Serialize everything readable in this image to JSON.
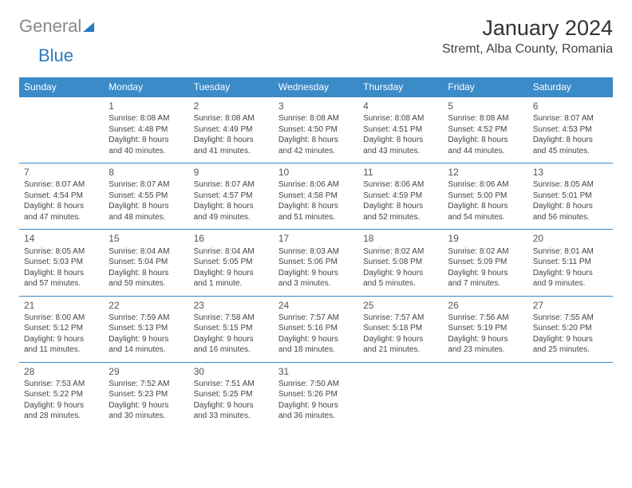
{
  "logo": {
    "general": "General",
    "blue": "Blue"
  },
  "header": {
    "month_title": "January 2024",
    "location": "Stremt, Alba County, Romania"
  },
  "day_headers": [
    "Sunday",
    "Monday",
    "Tuesday",
    "Wednesday",
    "Thursday",
    "Friday",
    "Saturday"
  ],
  "weeks": [
    [
      null,
      {
        "n": "1",
        "sr": "Sunrise: 8:08 AM",
        "ss": "Sunset: 4:48 PM",
        "d1": "Daylight: 8 hours",
        "d2": "and 40 minutes."
      },
      {
        "n": "2",
        "sr": "Sunrise: 8:08 AM",
        "ss": "Sunset: 4:49 PM",
        "d1": "Daylight: 8 hours",
        "d2": "and 41 minutes."
      },
      {
        "n": "3",
        "sr": "Sunrise: 8:08 AM",
        "ss": "Sunset: 4:50 PM",
        "d1": "Daylight: 8 hours",
        "d2": "and 42 minutes."
      },
      {
        "n": "4",
        "sr": "Sunrise: 8:08 AM",
        "ss": "Sunset: 4:51 PM",
        "d1": "Daylight: 8 hours",
        "d2": "and 43 minutes."
      },
      {
        "n": "5",
        "sr": "Sunrise: 8:08 AM",
        "ss": "Sunset: 4:52 PM",
        "d1": "Daylight: 8 hours",
        "d2": "and 44 minutes."
      },
      {
        "n": "6",
        "sr": "Sunrise: 8:07 AM",
        "ss": "Sunset: 4:53 PM",
        "d1": "Daylight: 8 hours",
        "d2": "and 45 minutes."
      }
    ],
    [
      {
        "n": "7",
        "sr": "Sunrise: 8:07 AM",
        "ss": "Sunset: 4:54 PM",
        "d1": "Daylight: 8 hours",
        "d2": "and 47 minutes."
      },
      {
        "n": "8",
        "sr": "Sunrise: 8:07 AM",
        "ss": "Sunset: 4:55 PM",
        "d1": "Daylight: 8 hours",
        "d2": "and 48 minutes."
      },
      {
        "n": "9",
        "sr": "Sunrise: 8:07 AM",
        "ss": "Sunset: 4:57 PM",
        "d1": "Daylight: 8 hours",
        "d2": "and 49 minutes."
      },
      {
        "n": "10",
        "sr": "Sunrise: 8:06 AM",
        "ss": "Sunset: 4:58 PM",
        "d1": "Daylight: 8 hours",
        "d2": "and 51 minutes."
      },
      {
        "n": "11",
        "sr": "Sunrise: 8:06 AM",
        "ss": "Sunset: 4:59 PM",
        "d1": "Daylight: 8 hours",
        "d2": "and 52 minutes."
      },
      {
        "n": "12",
        "sr": "Sunrise: 8:06 AM",
        "ss": "Sunset: 5:00 PM",
        "d1": "Daylight: 8 hours",
        "d2": "and 54 minutes."
      },
      {
        "n": "13",
        "sr": "Sunrise: 8:05 AM",
        "ss": "Sunset: 5:01 PM",
        "d1": "Daylight: 8 hours",
        "d2": "and 56 minutes."
      }
    ],
    [
      {
        "n": "14",
        "sr": "Sunrise: 8:05 AM",
        "ss": "Sunset: 5:03 PM",
        "d1": "Daylight: 8 hours",
        "d2": "and 57 minutes."
      },
      {
        "n": "15",
        "sr": "Sunrise: 8:04 AM",
        "ss": "Sunset: 5:04 PM",
        "d1": "Daylight: 8 hours",
        "d2": "and 59 minutes."
      },
      {
        "n": "16",
        "sr": "Sunrise: 8:04 AM",
        "ss": "Sunset: 5:05 PM",
        "d1": "Daylight: 9 hours",
        "d2": "and 1 minute."
      },
      {
        "n": "17",
        "sr": "Sunrise: 8:03 AM",
        "ss": "Sunset: 5:06 PM",
        "d1": "Daylight: 9 hours",
        "d2": "and 3 minutes."
      },
      {
        "n": "18",
        "sr": "Sunrise: 8:02 AM",
        "ss": "Sunset: 5:08 PM",
        "d1": "Daylight: 9 hours",
        "d2": "and 5 minutes."
      },
      {
        "n": "19",
        "sr": "Sunrise: 8:02 AM",
        "ss": "Sunset: 5:09 PM",
        "d1": "Daylight: 9 hours",
        "d2": "and 7 minutes."
      },
      {
        "n": "20",
        "sr": "Sunrise: 8:01 AM",
        "ss": "Sunset: 5:11 PM",
        "d1": "Daylight: 9 hours",
        "d2": "and 9 minutes."
      }
    ],
    [
      {
        "n": "21",
        "sr": "Sunrise: 8:00 AM",
        "ss": "Sunset: 5:12 PM",
        "d1": "Daylight: 9 hours",
        "d2": "and 11 minutes."
      },
      {
        "n": "22",
        "sr": "Sunrise: 7:59 AM",
        "ss": "Sunset: 5:13 PM",
        "d1": "Daylight: 9 hours",
        "d2": "and 14 minutes."
      },
      {
        "n": "23",
        "sr": "Sunrise: 7:58 AM",
        "ss": "Sunset: 5:15 PM",
        "d1": "Daylight: 9 hours",
        "d2": "and 16 minutes."
      },
      {
        "n": "24",
        "sr": "Sunrise: 7:57 AM",
        "ss": "Sunset: 5:16 PM",
        "d1": "Daylight: 9 hours",
        "d2": "and 18 minutes."
      },
      {
        "n": "25",
        "sr": "Sunrise: 7:57 AM",
        "ss": "Sunset: 5:18 PM",
        "d1": "Daylight: 9 hours",
        "d2": "and 21 minutes."
      },
      {
        "n": "26",
        "sr": "Sunrise: 7:56 AM",
        "ss": "Sunset: 5:19 PM",
        "d1": "Daylight: 9 hours",
        "d2": "and 23 minutes."
      },
      {
        "n": "27",
        "sr": "Sunrise: 7:55 AM",
        "ss": "Sunset: 5:20 PM",
        "d1": "Daylight: 9 hours",
        "d2": "and 25 minutes."
      }
    ],
    [
      {
        "n": "28",
        "sr": "Sunrise: 7:53 AM",
        "ss": "Sunset: 5:22 PM",
        "d1": "Daylight: 9 hours",
        "d2": "and 28 minutes."
      },
      {
        "n": "29",
        "sr": "Sunrise: 7:52 AM",
        "ss": "Sunset: 5:23 PM",
        "d1": "Daylight: 9 hours",
        "d2": "and 30 minutes."
      },
      {
        "n": "30",
        "sr": "Sunrise: 7:51 AM",
        "ss": "Sunset: 5:25 PM",
        "d1": "Daylight: 9 hours",
        "d2": "and 33 minutes."
      },
      {
        "n": "31",
        "sr": "Sunrise: 7:50 AM",
        "ss": "Sunset: 5:26 PM",
        "d1": "Daylight: 9 hours",
        "d2": "and 36 minutes."
      },
      null,
      null,
      null
    ]
  ]
}
